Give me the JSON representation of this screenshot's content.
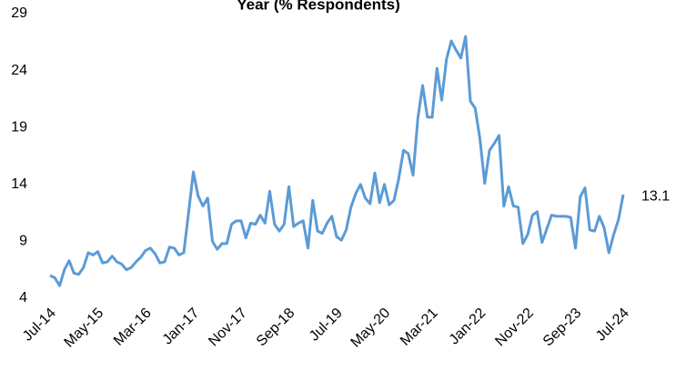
{
  "chart_data": {
    "type": "line",
    "title": "Year (% Respondents)",
    "categories": [
      "Jul-14",
      null,
      null,
      null,
      null,
      null,
      null,
      null,
      null,
      null,
      "May-15",
      null,
      null,
      null,
      null,
      null,
      null,
      null,
      null,
      null,
      "Mar-16",
      null,
      null,
      null,
      null,
      null,
      null,
      null,
      null,
      null,
      "Jan-17",
      null,
      null,
      null,
      null,
      null,
      null,
      null,
      null,
      null,
      "Nov-17",
      null,
      null,
      null,
      null,
      null,
      null,
      null,
      null,
      null,
      "Sep-18",
      null,
      null,
      null,
      null,
      null,
      null,
      null,
      null,
      null,
      "Jul-19",
      null,
      null,
      null,
      null,
      null,
      null,
      null,
      null,
      null,
      "May-20",
      null,
      null,
      null,
      null,
      null,
      null,
      null,
      null,
      null,
      "Mar-21",
      null,
      null,
      null,
      null,
      null,
      null,
      null,
      null,
      null,
      "Jan-22",
      null,
      null,
      null,
      null,
      null,
      null,
      null,
      null,
      null,
      "Nov-22",
      null,
      null,
      null,
      null,
      null,
      null,
      null,
      null,
      null,
      "Sep-23",
      null,
      null,
      null,
      null,
      null,
      null,
      null,
      null,
      null,
      "Jul-24"
    ],
    "series": [
      {
        "color": "#5b9bd5",
        "values": [
          6.0,
          5.8,
          5.1,
          6.5,
          7.3,
          6.2,
          6.1,
          6.7,
          8.0,
          7.8,
          8.1,
          7.1,
          7.2,
          7.7,
          7.2,
          7.0,
          6.5,
          6.7,
          7.2,
          7.6,
          8.2,
          8.4,
          7.9,
          7.1,
          7.2,
          8.5,
          8.4,
          7.8,
          8.0,
          11.5,
          15.1,
          13.0,
          12.1,
          12.8,
          9.0,
          8.3,
          8.8,
          8.8,
          10.5,
          10.8,
          10.8,
          9.3,
          10.6,
          10.5,
          11.3,
          10.6,
          13.4,
          10.5,
          9.9,
          10.5,
          13.8,
          10.3,
          10.6,
          10.8,
          8.4,
          12.6,
          9.9,
          9.7,
          10.6,
          11.2,
          9.4,
          9.1,
          10.0,
          12.0,
          13.2,
          14.0,
          12.8,
          12.3,
          15.0,
          12.4,
          14.0,
          12.2,
          12.6,
          14.5,
          17.0,
          16.7,
          14.8,
          19.8,
          22.7,
          19.9,
          19.9,
          24.2,
          21.4,
          25.0,
          26.6,
          25.8,
          25.1,
          27.0,
          21.3,
          20.7,
          18.0,
          14.1,
          17.0,
          17.6,
          18.3,
          12.1,
          13.8,
          12.1,
          12.0,
          8.8,
          9.6,
          11.3,
          11.6,
          8.9,
          10.1,
          11.3,
          11.2,
          11.2,
          11.2,
          11.1,
          8.4,
          12.9,
          13.7,
          10.0,
          9.9,
          11.2,
          10.2,
          8.0,
          9.6,
          10.9,
          13.1
        ]
      }
    ],
    "ylim": [
      4,
      29
    ],
    "yticks": [
      4,
      9,
      14,
      19,
      24,
      29
    ],
    "grid": false
  }
}
